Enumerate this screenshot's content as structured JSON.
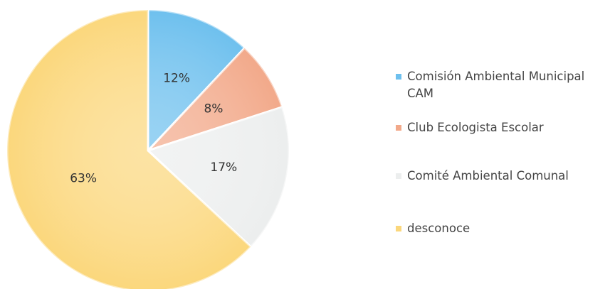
{
  "chart_data": {
    "type": "pie",
    "categories": [
      "Comisión Ambiental Municipal CAM",
      "Club Ecologista Escolar",
      "Comité Ambiental Comunal",
      "desconoce"
    ],
    "values": [
      12,
      8,
      17,
      63
    ],
    "value_labels": [
      "12%",
      "8%",
      "17%",
      "63%"
    ],
    "colors": [
      "#6ec0ee",
      "#f2a98a",
      "#eceeee",
      "#fbd77c"
    ],
    "legend": "right"
  }
}
